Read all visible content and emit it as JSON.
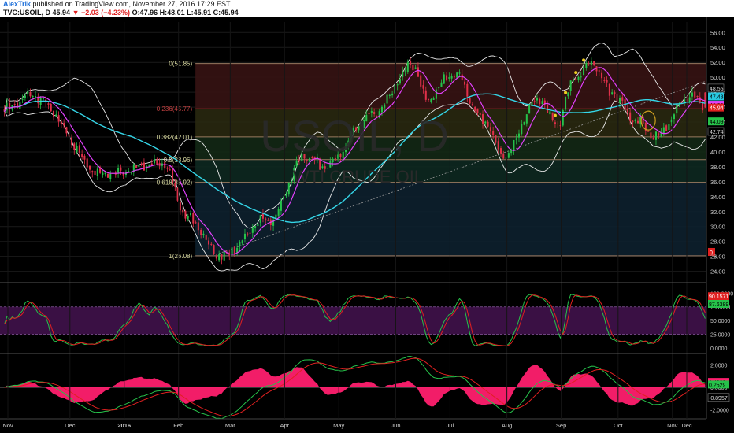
{
  "header": {
    "author": "AlexTrik",
    "published": "published on TradingView.com, November 27, 2016 17:29 EST",
    "symbol": "TVC:USOIL, D",
    "last": "45.94",
    "arrow": "▼",
    "change": "−2.03 (−4.23%)",
    "ohlc": "O:47.96 H:48.01 L:45.91 C:45.94"
  },
  "watermark": {
    "line1": "USOIL, D",
    "line2": "WTI CRUDE OIL"
  },
  "colors": {
    "candle_up": "#26c24a",
    "candle_down": "#e0304a",
    "fast_ma": "#e040fb",
    "slow_ma": "#35d6e8",
    "bands": "#e8e8e8",
    "hist": "#ff1f6e",
    "stoch_fill": "#3a1044",
    "fib_line": "#8a4a4a"
  },
  "chart_data": [
    {
      "type": "candlestick",
      "title": "USOIL, D",
      "subtitle": "WTI CRUDE OIL",
      "x_ticks": [
        "Nov",
        "Dec",
        "2016",
        "Feb",
        "Mar",
        "Apr",
        "May",
        "Jun",
        "Jul",
        "Aug",
        "Sep",
        "Oct",
        "Nov",
        "Dec"
      ],
      "y_ticks": [
        "56.00",
        "54.00",
        "52.00",
        "50.00",
        "48.00",
        "46.00",
        "44.00",
        "42.00",
        "40.00",
        "38.00",
        "36.00",
        "34.00",
        "32.00",
        "30.00",
        "28.00",
        "26.00",
        "24.00"
      ],
      "ylim": [
        22.8,
        57.4
      ],
      "fib_levels": [
        {
          "label": "0(51.85)",
          "value": 51.85
        },
        {
          "label": "0.236(45.77)",
          "value": 45.77
        },
        {
          "label": "0.382(42.01)",
          "value": 42.01
        },
        {
          "label": "0.5(38.96)",
          "value": 38.96
        },
        {
          "label": "0.618(35.92)",
          "value": 35.92
        },
        {
          "label": "1(26.08)",
          "value": 26.08
        }
      ],
      "price_labels": [
        "48.55",
        "47.43",
        "46.32",
        "45.94",
        "44.09",
        "42.74"
      ],
      "price_anchors": {
        "start": 45.7,
        "mid_nov_high": 47.5,
        "dec_low": 37.0,
        "feb_low": 26.1,
        "jun_high": 51.6,
        "aug_low": 39.5,
        "oct_high": 51.9,
        "nov_low": 42.2,
        "last": 45.94
      },
      "extra_labels": [
        "0",
        "28"
      ]
    },
    {
      "type": "line",
      "name": "Stochastic",
      "y_ticks": [
        "100.0000",
        "75.0000",
        "50.0000",
        "25.0000",
        "0.0000"
      ],
      "ylim": [
        -6,
        115
      ],
      "bands": [
        25,
        75
      ],
      "value_labels": [
        "90.1571",
        "87.6389"
      ]
    },
    {
      "type": "line",
      "name": "MACD",
      "y_ticks": [
        "2.0000",
        "0.0000",
        "-2.0000"
      ],
      "ylim": [
        -2.8,
        2.8
      ],
      "value_labels": [
        "0.4808",
        "0.2529",
        "-0.8957"
      ]
    }
  ]
}
